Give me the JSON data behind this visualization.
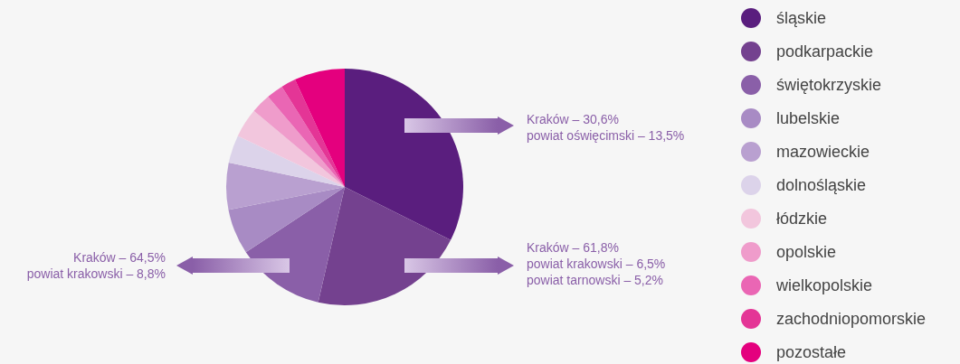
{
  "chart_data": {
    "type": "pie",
    "categories": [
      "śląskie",
      "podkarpackie",
      "świętokrzyskie",
      "lubelskie",
      "mazowieckie",
      "dolnośląskie",
      "łódzkie",
      "opolskie",
      "wielkopolskie",
      "zachodniopomorskie",
      "pozostałe"
    ],
    "values": [
      32.4,
      21.2,
      12.1,
      6.2,
      6.4,
      3.8,
      4.0,
      2.7,
      2.3,
      2.0,
      6.9
    ],
    "colors": [
      "#5a1e7e",
      "#74418f",
      "#8a5fa8",
      "#a88bc4",
      "#b9a0d0",
      "#dcd3ea",
      "#f2c6dd",
      "#ef9ccb",
      "#ea66b4",
      "#e43596",
      "#e4007e"
    ],
    "legend": "right",
    "annotations": [
      "Kraków – 30,6%\npowiat oświęcimski – 13,5%",
      "Kraków – 61,8%\npowiat krakowski – 6,5%\npowiat tarnowski – 5,2%",
      "Kraków – 64,5%\npowiat krakowski – 8,8%"
    ]
  }
}
